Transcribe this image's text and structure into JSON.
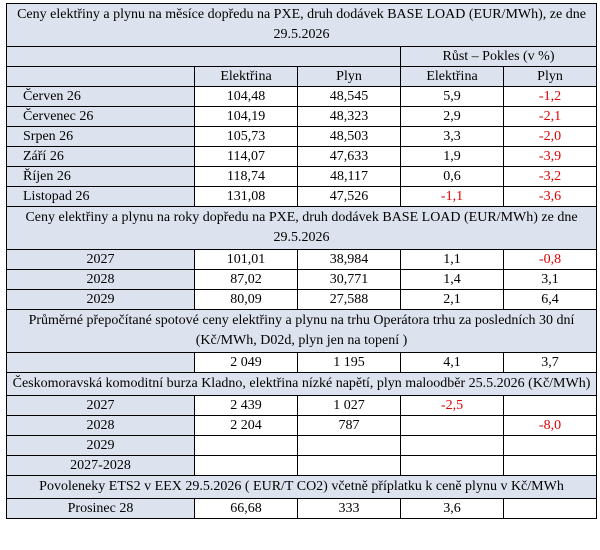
{
  "section1": {
    "title": "Ceny elektřiny a plynu na měsíce dopředu na PXE, druh dodávek BASE LOAD (EUR/MWh), ze dne 29.5.2026",
    "change_header": "Růst – Pokles (v %)",
    "col_electricity": "Elektřina",
    "col_gas": "Plyn",
    "col_change_electricity": "Elektřina",
    "col_change_gas": "Plyn",
    "rows": [
      {
        "label": "Červen 26",
        "electricity": "104,48",
        "gas": "48,545",
        "chg_el": "5,9",
        "chg_gas": "-1,2"
      },
      {
        "label": "Červenec 26",
        "electricity": "104,19",
        "gas": "48,323",
        "chg_el": "2,9",
        "chg_gas": "-2,1"
      },
      {
        "label": "Srpen 26",
        "electricity": "105,73",
        "gas": "48,503",
        "chg_el": "3,3",
        "chg_gas": "-2,0"
      },
      {
        "label": "Září 26",
        "electricity": "114,07",
        "gas": "47,633",
        "chg_el": "1,9",
        "chg_gas": "-3,9"
      },
      {
        "label": "Říjen 26",
        "electricity": "118,74",
        "gas": "48,117",
        "chg_el": "0,6",
        "chg_gas": "-3,2"
      },
      {
        "label": "Listopad 26",
        "electricity": "131,08",
        "gas": "47,526",
        "chg_el": "-1,1",
        "chg_gas": "-3,6"
      }
    ]
  },
  "section2": {
    "title": "Ceny elektřiny a plynu na roky dopředu na PXE, druh dodávek BASE LOAD (EUR/MWh) ze dne 29.5.2026",
    "rows": [
      {
        "label": "2027",
        "electricity": "101,01",
        "gas": "38,984",
        "chg_el": "1,1",
        "chg_gas": "-0,8"
      },
      {
        "label": "2028",
        "electricity": "87,02",
        "gas": "30,771",
        "chg_el": "1,4",
        "chg_gas": "3,1"
      },
      {
        "label": "2029",
        "electricity": "80,09",
        "gas": "27,588",
        "chg_el": "2,1",
        "chg_gas": "6,4"
      }
    ]
  },
  "section3": {
    "title": "Průměrné přepočítané spotové ceny elektřiny a plynu na trhu Operátora trhu za posledních 30 dní (Kč/MWh, D02d, plyn jen na topení )",
    "row": {
      "electricity": "2 049",
      "gas": "1 195",
      "chg_el": "4,1",
      "chg_gas": "3,7"
    }
  },
  "section4": {
    "title": "Českomoravská komoditní burza Kladno, elektřina nízké napětí, plyn maloodběr 25.5.2026 (Kč/MWh)",
    "rows": [
      {
        "label": "2027",
        "electricity": "2 439",
        "gas": "1 027",
        "chg_el": "-2,5",
        "chg_gas": ""
      },
      {
        "label": "2028",
        "electricity": "2 204",
        "gas": "787",
        "chg_el": "",
        "chg_gas": "-8,0"
      },
      {
        "label": "2029",
        "electricity": "",
        "gas": "",
        "chg_el": "",
        "chg_gas": ""
      },
      {
        "label": "2027-2028",
        "electricity": "",
        "gas": "",
        "chg_el": "",
        "chg_gas": ""
      }
    ]
  },
  "section5": {
    "title": "Povoleneky ETS2 v EEX 29.5.2026  ( EUR/T CO2) včetně příplatku k ceně plynu v Kč/MWh",
    "row": {
      "label": "Prosinec 28",
      "electricity": "66,68",
      "gas": "333",
      "chg_el": "3,6",
      "chg_gas": ""
    }
  }
}
